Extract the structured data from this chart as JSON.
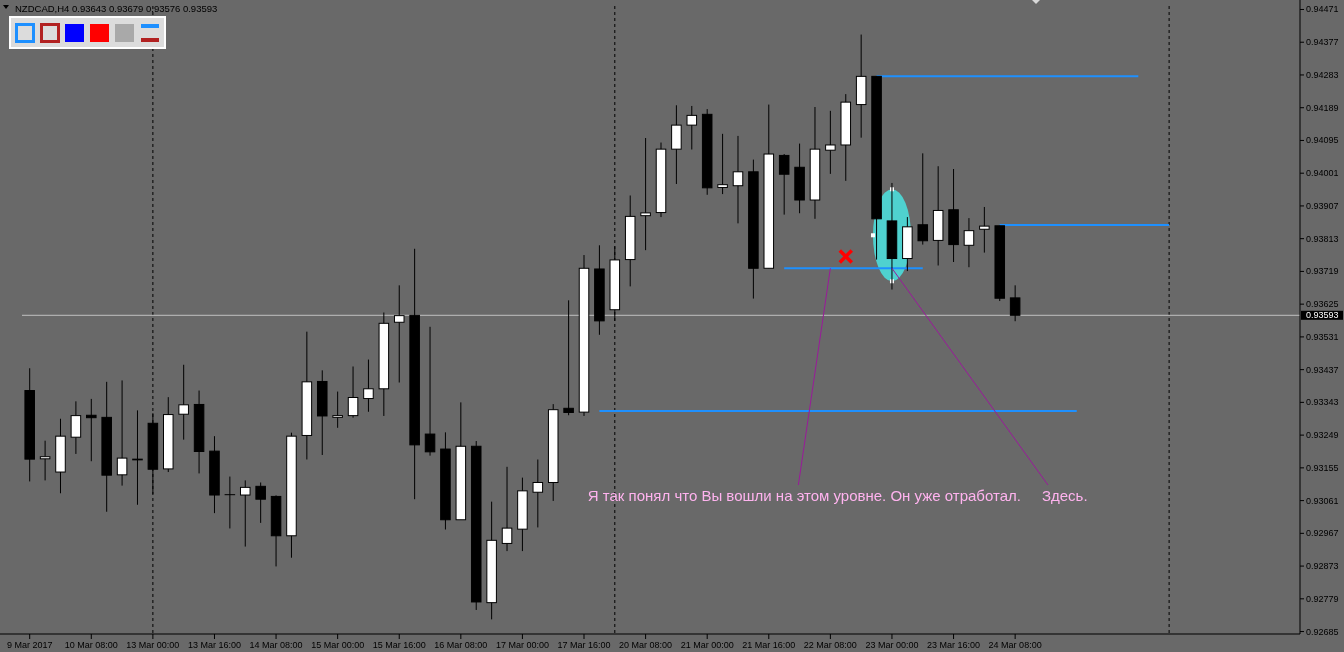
{
  "chart_data": {
    "type": "candlestick",
    "title": "NZDCAD,H4 0.93643 0.93679 0.93576 0.93593",
    "categories": [
      "9 Mar 2017",
      null,
      null,
      null,
      "10 Mar 08:00",
      null,
      null,
      null,
      "13 Mar 00:00",
      null,
      null,
      null,
      "13 Mar 16:00",
      null,
      null,
      null,
      "14 Mar 08:00",
      null,
      null,
      null,
      "15 Mar 00:00",
      null,
      null,
      null,
      "15 Mar 16:00",
      null,
      null,
      null,
      "16 Mar 08:00",
      null,
      null,
      null,
      "17 Mar 00:00",
      null,
      null,
      null,
      "17 Mar 16:00",
      null,
      null,
      null,
      "20 Mar 08:00",
      null,
      null,
      null,
      "21 Mar 00:00",
      null,
      null,
      null,
      "21 Mar 16:00",
      null,
      null,
      null,
      "22 Mar 08:00",
      null,
      null,
      null,
      "23 Mar 00:00",
      null,
      null,
      null,
      "23 Mar 16:00",
      null,
      null,
      null,
      "24 Mar 08:00",
      null,
      null,
      null,
      null,
      null,
      null,
      null,
      null,
      null,
      null,
      null,
      null,
      null,
      null,
      null,
      null,
      null,
      null
    ],
    "ohlc": [
      [
        0.93377,
        0.93441,
        0.93116,
        0.9318
      ],
      [
        0.93181,
        0.93233,
        0.93119,
        0.93187
      ],
      [
        0.93143,
        0.93296,
        0.93082,
        0.93246
      ],
      [
        0.93243,
        0.93346,
        0.93195,
        0.93305
      ],
      [
        0.93306,
        0.93353,
        0.93174,
        0.93299
      ],
      [
        0.933,
        0.93402,
        0.93029,
        0.93134
      ],
      [
        0.93135,
        0.93406,
        0.93104,
        0.93183
      ],
      [
        0.9318,
        0.9332,
        0.93049,
        0.93178
      ],
      [
        0.93283,
        0.93312,
        0.9308,
        0.93151
      ],
      [
        0.93152,
        0.93358,
        0.93143,
        0.93308
      ],
      [
        0.93309,
        0.93451,
        0.93236,
        0.93336
      ],
      [
        0.93337,
        0.93377,
        0.93139,
        0.93202
      ],
      [
        0.93203,
        0.93246,
        0.93025,
        0.93077
      ],
      [
        0.93078,
        0.9313,
        0.92981,
        0.93078
      ],
      [
        0.93077,
        0.93119,
        0.92929,
        0.93099
      ],
      [
        0.93102,
        0.93113,
        0.92997,
        0.93065
      ],
      [
        0.93073,
        0.93076,
        0.92872,
        0.9296
      ],
      [
        0.9296,
        0.93256,
        0.92897,
        0.93246
      ],
      [
        0.93248,
        0.93546,
        0.93179,
        0.93402
      ],
      [
        0.93403,
        0.93435,
        0.93192,
        0.93304
      ],
      [
        0.933,
        0.93374,
        0.9327,
        0.93305
      ],
      [
        0.93305,
        0.93446,
        0.93299,
        0.93357
      ],
      [
        0.93354,
        0.93466,
        0.93316,
        0.93382
      ],
      [
        0.93382,
        0.93601,
        0.93304,
        0.9357
      ],
      [
        0.93573,
        0.93679,
        0.934,
        0.93592
      ],
      [
        0.93593,
        0.93784,
        0.93065,
        0.93221
      ],
      [
        0.93252,
        0.9356,
        0.9319,
        0.93201
      ],
      [
        0.93209,
        0.93257,
        0.92978,
        0.93006
      ],
      [
        0.93006,
        0.93343,
        0.93006,
        0.93217
      ],
      [
        0.93217,
        0.93232,
        0.92747,
        0.9277
      ],
      [
        0.92768,
        0.93058,
        0.9272,
        0.92947
      ],
      [
        0.92938,
        0.93158,
        0.92916,
        0.92982
      ],
      [
        0.92979,
        0.93127,
        0.92916,
        0.93089
      ],
      [
        0.93085,
        0.93179,
        0.92984,
        0.93113
      ],
      [
        0.93113,
        0.93338,
        0.9306,
        0.93322
      ],
      [
        0.93326,
        0.93636,
        0.93306,
        0.93314
      ],
      [
        0.93315,
        0.93766,
        0.93304,
        0.93728
      ],
      [
        0.93726,
        0.93794,
        0.93537,
        0.93577
      ],
      [
        0.93609,
        0.93791,
        0.93577,
        0.93752
      ],
      [
        0.93753,
        0.93937,
        0.93676,
        0.93877
      ],
      [
        0.93879,
        0.94102,
        0.9378,
        0.93887
      ],
      [
        0.93888,
        0.94089,
        0.93875,
        0.9407
      ],
      [
        0.9407,
        0.94196,
        0.9397,
        0.94139
      ],
      [
        0.94139,
        0.94194,
        0.94069,
        0.94167
      ],
      [
        0.9417,
        0.94185,
        0.93939,
        0.93959
      ],
      [
        0.9396,
        0.94114,
        0.93941,
        0.93968
      ],
      [
        0.93965,
        0.94108,
        0.93857,
        0.94005
      ],
      [
        0.94005,
        0.9404,
        0.93641,
        0.93728
      ],
      [
        0.93728,
        0.94198,
        0.93728,
        0.94056
      ],
      [
        0.94052,
        0.94056,
        0.93882,
        0.93998
      ],
      [
        0.94018,
        0.94086,
        0.93886,
        0.93924
      ],
      [
        0.93924,
        0.94191,
        0.9387,
        0.9407
      ],
      [
        0.94067,
        0.9418,
        0.93999,
        0.94082
      ],
      [
        0.94082,
        0.94228,
        0.93979,
        0.94205
      ],
      [
        0.94198,
        0.94399,
        0.94103,
        0.94279
      ],
      [
        0.94279,
        0.94279,
        0.93753,
        0.9387
      ],
      [
        0.93864,
        0.93973,
        0.93667,
        0.93756
      ],
      [
        0.93756,
        0.93875,
        0.9372,
        0.93847
      ],
      [
        0.93853,
        0.94058,
        0.93796,
        0.93807
      ],
      [
        0.93808,
        0.94021,
        0.93736,
        0.93894
      ],
      [
        0.93896,
        0.94013,
        0.93746,
        0.93796
      ],
      [
        0.93794,
        0.93872,
        0.93731,
        0.93836
      ],
      [
        0.9384,
        0.93904,
        0.93773,
        0.93849
      ],
      [
        0.9385,
        0.9385,
        0.93634,
        0.93642
      ],
      [
        0.93643,
        0.93679,
        0.93576,
        0.93593
      ],
      null,
      null,
      null,
      null,
      null,
      null,
      null,
      null,
      null,
      null,
      null,
      null,
      null,
      null,
      null,
      null,
      null,
      null
    ],
    "colors": [
      "#000000",
      "#ffffff",
      "#ffffff",
      "#ffffff",
      "#000000",
      "#000000",
      "#ffffff",
      "#000000",
      "#000000",
      "#ffffff",
      "#ffffff",
      "#000000",
      "#000000",
      "#000000",
      "#ffffff",
      "#000000",
      "#000000",
      "#ffffff",
      "#ffffff",
      "#000000",
      "#ffffff",
      "#ffffff",
      "#ffffff",
      "#ffffff",
      "#ffffff",
      "#000000",
      "#000000",
      "#000000",
      "#ffffff",
      "#000000",
      "#ffffff",
      "#ffffff",
      "#ffffff",
      "#ffffff",
      "#ffffff",
      "#000000",
      "#ffffff",
      "#000000",
      "#ffffff",
      "#ffffff",
      "#ffffff",
      "#ffffff",
      "#ffffff",
      "#ffffff",
      "#000000",
      "#ffffff",
      "#ffffff",
      "#000000",
      "#ffffff",
      "#000000",
      "#000000",
      "#ffffff",
      "#ffffff",
      "#ffffff",
      "#ffffff",
      "#000000",
      "#000000",
      "#ffffff",
      "#000000",
      "#ffffff",
      "#000000",
      "#ffffff",
      "#ffffff",
      "#000000",
      "#000000",
      null,
      null,
      null,
      null,
      null,
      null,
      null,
      null,
      null,
      null,
      null,
      null,
      null,
      null,
      null,
      null,
      null,
      null
    ],
    "color": "#000000",
    "ylim": [
      0.92678,
      0.94481
    ],
    "yticks": [
      0.92685,
      0.92779,
      0.92873,
      0.92967,
      0.93061,
      0.93155,
      0.93249,
      0.93343,
      0.93437,
      0.93531,
      0.93625,
      0.93719,
      0.93813,
      0.93907,
      0.94001,
      0.94095,
      0.94189,
      0.94283,
      0.94377,
      0.94471
    ],
    "series": [
      {
        "type": "line",
        "color": "#1e90ff",
        "values": [
          null,
          null,
          null,
          null,
          null,
          null,
          null,
          null,
          null,
          null,
          null,
          null,
          null,
          null,
          null,
          null,
          null,
          null,
          null,
          null,
          null,
          null,
          null,
          null,
          null,
          null,
          null,
          null,
          null,
          null,
          null,
          null,
          null,
          null,
          null,
          null,
          null,
          null,
          null,
          null,
          null,
          null,
          null,
          null,
          null,
          null,
          null,
          null,
          null,
          null,
          null,
          null,
          null,
          null,
          null,
          0.94279,
          0.94279,
          0.94279,
          0.94279,
          0.94279,
          0.94279,
          0.94279,
          0.94279,
          0.94279,
          0.94279,
          0.94279,
          0.94279,
          0.94279,
          0.94279,
          0.94279,
          0.94279,
          0.94279,
          0.94279,
          null,
          null,
          null,
          null,
          null,
          null,
          null,
          null,
          null,
          null
        ]
      },
      {
        "type": "line",
        "color": "#1e90ff",
        "values": [
          null,
          null,
          null,
          null,
          null,
          null,
          null,
          null,
          null,
          null,
          null,
          null,
          null,
          null,
          null,
          null,
          null,
          null,
          null,
          null,
          null,
          null,
          null,
          null,
          null,
          null,
          null,
          null,
          null,
          null,
          null,
          null,
          null,
          null,
          null,
          null,
          null,
          null,
          null,
          null,
          null,
          null,
          null,
          null,
          null,
          null,
          null,
          null,
          null,
          null,
          null,
          null,
          null,
          null,
          null,
          null,
          null,
          null,
          null,
          null,
          null,
          null,
          null,
          0.93852,
          0.93852,
          0.93852,
          0.93852,
          0.93852,
          0.93852,
          0.93852,
          0.93852,
          0.93852,
          0.93852,
          0.93852,
          0.93852,
          null,
          null,
          null,
          null,
          null,
          null,
          null,
          null
        ]
      },
      {
        "type": "line",
        "color": "#1e90ff",
        "values": [
          null,
          null,
          null,
          null,
          null,
          null,
          null,
          null,
          null,
          null,
          null,
          null,
          null,
          null,
          null,
          null,
          null,
          null,
          null,
          null,
          null,
          null,
          null,
          null,
          null,
          null,
          null,
          null,
          null,
          null,
          null,
          null,
          null,
          null,
          null,
          null,
          null,
          null,
          null,
          null,
          null,
          null,
          null,
          null,
          null,
          null,
          null,
          null,
          null,
          0.93728,
          0.93728,
          0.93728,
          0.93728,
          0.93728,
          0.93728,
          0.93728,
          0.93728,
          0.93728,
          0.93728,
          null,
          null,
          null,
          null,
          null,
          null,
          null,
          null,
          null,
          null,
          null,
          null,
          null,
          null,
          null,
          null,
          null,
          null,
          null,
          null,
          null,
          null,
          null,
          null
        ]
      },
      {
        "type": "line",
        "color": "#1e90ff",
        "values": [
          null,
          null,
          null,
          null,
          null,
          null,
          null,
          null,
          null,
          null,
          null,
          null,
          null,
          null,
          null,
          null,
          null,
          null,
          null,
          null,
          null,
          null,
          null,
          null,
          null,
          null,
          null,
          null,
          null,
          null,
          null,
          null,
          null,
          null,
          null,
          null,
          null,
          0.93318,
          0.93318,
          0.93318,
          0.93318,
          0.93318,
          0.93318,
          0.93318,
          0.93318,
          0.93318,
          0.93318,
          0.93318,
          0.93318,
          0.93318,
          0.93318,
          0.93318,
          0.93318,
          0.93318,
          0.93318,
          0.93318,
          0.93318,
          0.93318,
          0.93318,
          0.93318,
          0.93318,
          0.93318,
          0.93318,
          0.93318,
          0.93318,
          0.93318,
          0.93318,
          0.93318,
          0.93318,
          null,
          null,
          null,
          null,
          null,
          null,
          null,
          null,
          null,
          null,
          null,
          null,
          null,
          null
        ]
      },
      {
        "type": "scatter",
        "color": "#ff0000",
        "marker": "cross",
        "values": [
          null,
          null,
          null,
          null,
          null,
          null,
          null,
          null,
          null,
          null,
          null,
          null,
          null,
          null,
          null,
          null,
          null,
          null,
          null,
          null,
          null,
          null,
          null,
          null,
          null,
          null,
          null,
          null,
          null,
          null,
          null,
          null,
          null,
          null,
          null,
          null,
          null,
          null,
          null,
          null,
          null,
          null,
          null,
          null,
          null,
          null,
          null,
          null,
          null,
          null,
          null,
          null,
          null,
          0.93762,
          null,
          null,
          null,
          null,
          null,
          null,
          null,
          null,
          null,
          null,
          null,
          null,
          null,
          null,
          null,
          null,
          null,
          null,
          null,
          null,
          null,
          null,
          null,
          null,
          null,
          null,
          null,
          null,
          null
        ]
      }
    ],
    "ref_lines": [
      {
        "axis": "x",
        "value": "13 Mar 00:00",
        "color": "#000000",
        "line_style": "dashed"
      },
      {
        "axis": "y",
        "value": 0.93593,
        "label": "0.93593",
        "color": "#c0c0c0"
      }
    ],
    "annotations": [
      {
        "text": "Я так понял что Вы вошли на этом уровне. Он уже отработал.",
        "x": "22 Mar 08:00",
        "y": 0.93728
      },
      {
        "text": "Здесь.",
        "x": "23 Mar 00:00",
        "y": 0.93728
      }
    ]
  }
}
